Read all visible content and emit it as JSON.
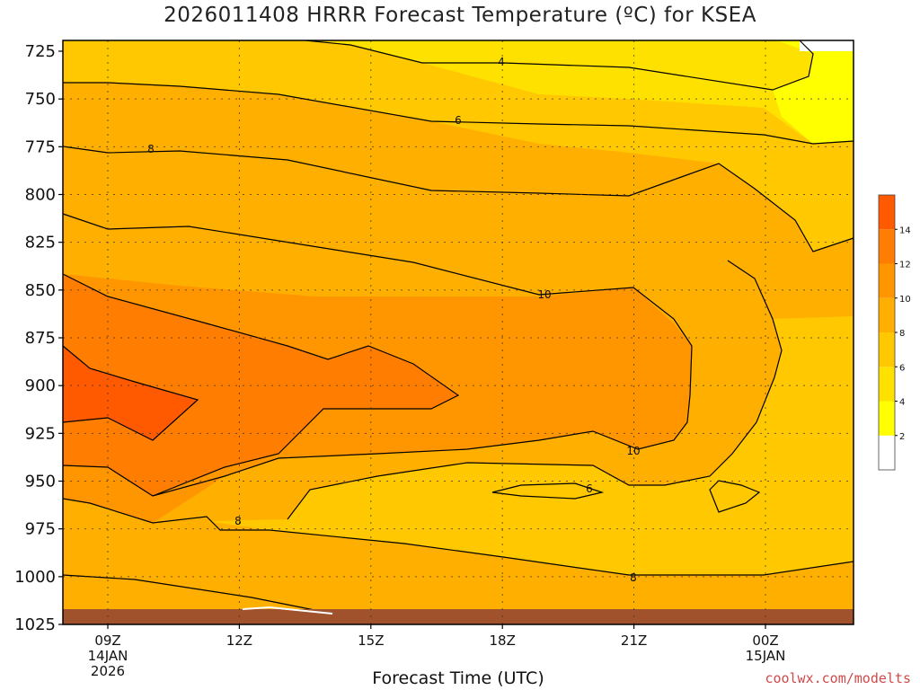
{
  "chart_data": {
    "type": "heatmap",
    "title": "2026011408 HRRR Forecast Temperature (ºC) for KSEA",
    "xlabel": "Forecast Time (UTC)",
    "ylabel": "",
    "x_ticks": [
      {
        "label": "09Z",
        "sub": [
          "14JAN",
          "2026"
        ]
      },
      {
        "label": "12Z",
        "sub": []
      },
      {
        "label": "15Z",
        "sub": []
      },
      {
        "label": "18Z",
        "sub": []
      },
      {
        "label": "21Z",
        "sub": []
      },
      {
        "label": "00Z",
        "sub": [
          "15JAN"
        ]
      }
    ],
    "y_ticks": [
      "725",
      "750",
      "775",
      "800",
      "825",
      "850",
      "875",
      "900",
      "925",
      "950",
      "975",
      "1000",
      "1025"
    ],
    "contour_labels": [
      "4",
      "6",
      "8",
      "10",
      "10",
      "6",
      "8",
      "8"
    ],
    "colorbar": {
      "ticks": [
        "2",
        "4",
        "6",
        "8",
        "10",
        "12",
        "14"
      ],
      "colors": [
        "#ffffff",
        "#ffff00",
        "#ffe100",
        "#ffc800",
        "#ffaf00",
        "#ff9600",
        "#ff7d00",
        "#ff5a00"
      ]
    },
    "grid": true,
    "credit": "coolwx.com/modelts"
  }
}
